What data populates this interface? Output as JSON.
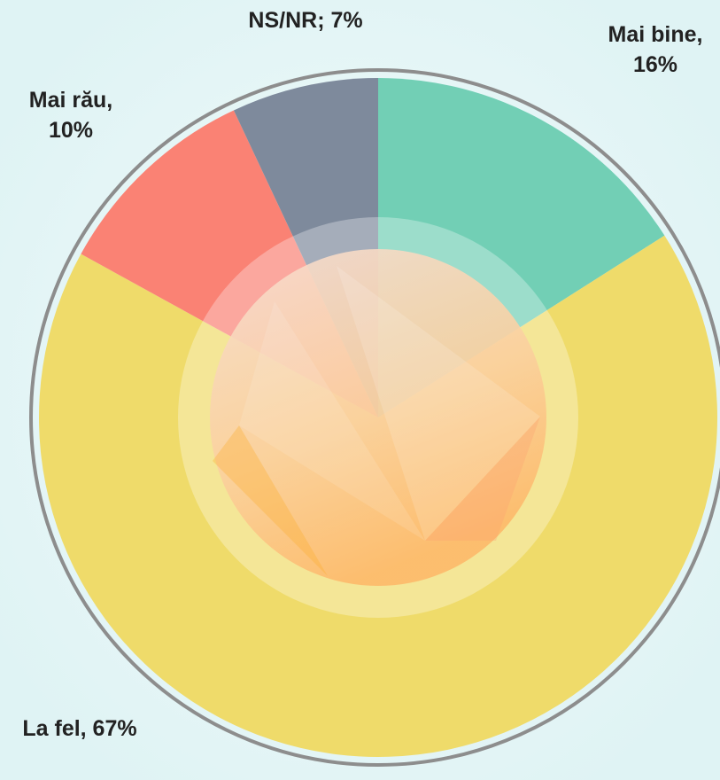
{
  "chart_data": {
    "type": "pie",
    "values": [
      16,
      67,
      10,
      7
    ],
    "value_labels": [
      "Mai bine, 16%",
      "La fel, 67%",
      "Mai rău, 10%",
      "NS/NR; 7%"
    ],
    "colors": [
      "#72cfb5",
      "#efdb6a",
      "#fa8274",
      "#7e8a9c"
    ]
  }
}
